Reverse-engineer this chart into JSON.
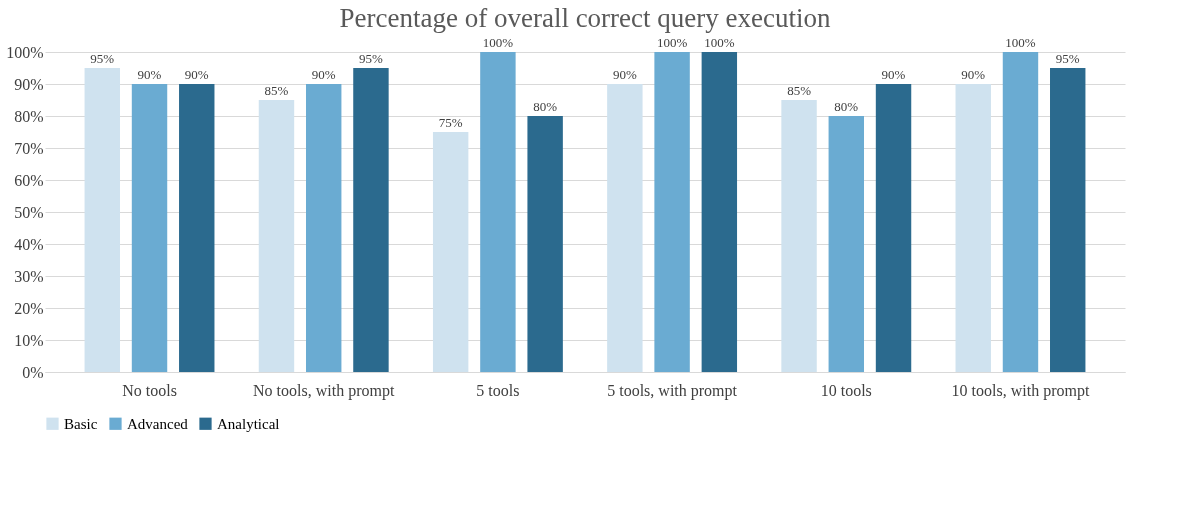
{
  "chart_data": {
    "type": "bar",
    "title": "Percentage of overall correct query execution",
    "categories": [
      "No tools",
      "No tools, with prompt",
      "5 tools",
      "5 tools, with prompt",
      "10 tools",
      "10 tools, with prompt"
    ],
    "series": [
      {
        "name": "Basic",
        "color": "#cfe2ef",
        "values": [
          95,
          85,
          75,
          90,
          85,
          90
        ],
        "value_labels": [
          "95%",
          "85%",
          "75%",
          "90%",
          "85%",
          "90%"
        ]
      },
      {
        "name": "Advanced",
        "color": "#6aabd2",
        "values": [
          90,
          90,
          100,
          100,
          80,
          100
        ],
        "value_labels": [
          "90%",
          "90%",
          "100%",
          "100%",
          "80%",
          "100%"
        ]
      },
      {
        "name": "Analytical",
        "color": "#2b6a8e",
        "values": [
          90,
          95,
          80,
          100,
          90,
          95
        ],
        "value_labels": [
          "90%",
          "95%",
          "80%",
          "100%",
          "90%",
          "95%"
        ]
      }
    ],
    "ylim": [
      0,
      100
    ],
    "yticks": [
      {
        "value": 0,
        "label": "0%"
      },
      {
        "value": 10,
        "label": "10%"
      },
      {
        "value": 20,
        "label": "20%"
      },
      {
        "value": 30,
        "label": "30%"
      },
      {
        "value": 40,
        "label": "40%"
      },
      {
        "value": 50,
        "label": "50%"
      },
      {
        "value": 60,
        "label": "60%"
      },
      {
        "value": 70,
        "label": "70%"
      },
      {
        "value": 80,
        "label": "80%"
      },
      {
        "value": 90,
        "label": "90%"
      },
      {
        "value": 100,
        "label": "100%"
      }
    ],
    "grid": "y",
    "legend": "bottom"
  }
}
